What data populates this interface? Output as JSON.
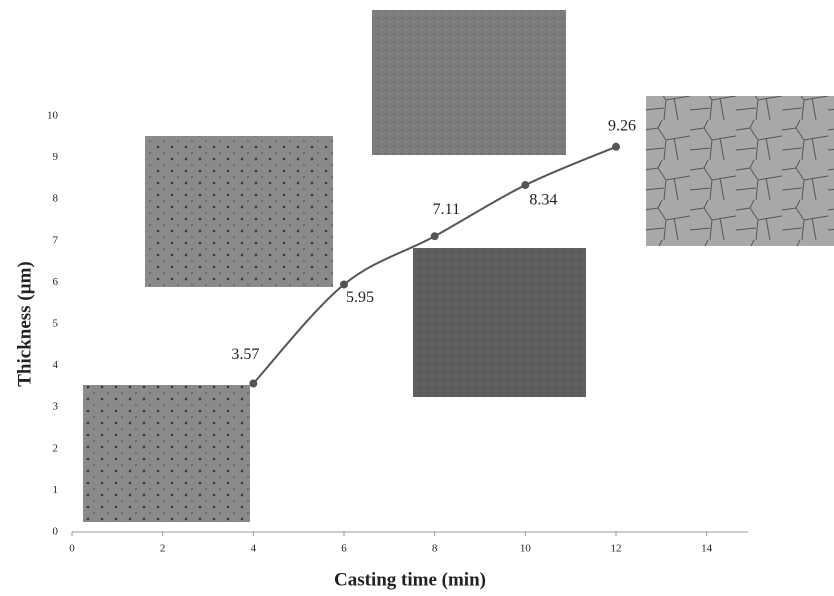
{
  "chart_data": {
    "type": "line",
    "x_label": "Casting time (min)",
    "y_label": "Thickness (µm)",
    "x": [
      4,
      6,
      8,
      10,
      12
    ],
    "series": [
      {
        "color": "#555555",
        "values": [
          3.57,
          5.95,
          7.11,
          8.34,
          9.26
        ]
      }
    ],
    "xlim": [
      0,
      15
    ],
    "xticks": [
      0,
      2,
      4,
      6,
      8,
      10,
      12,
      14
    ],
    "ylim": [
      0,
      10
    ],
    "yticks": [
      0,
      1,
      2,
      3,
      4,
      5,
      6,
      7,
      8,
      9,
      10
    ],
    "grid": false
  }
}
